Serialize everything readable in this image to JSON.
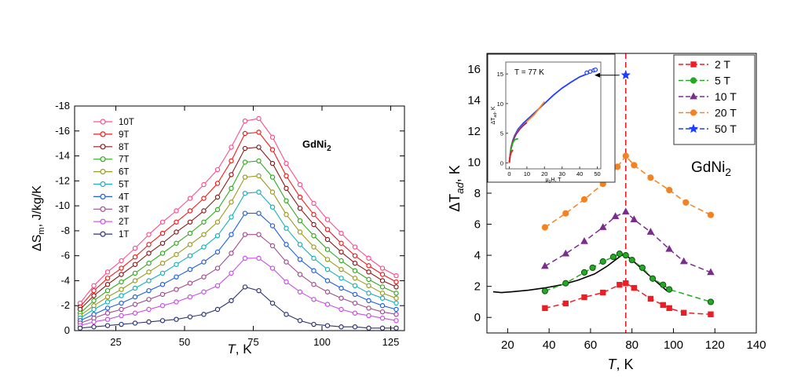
{
  "chart_data": [
    {
      "type": "line",
      "annotation": "GdNi",
      "annotation_sub": "2",
      "xlabel": "T",
      "xlabel_unit": ", K",
      "ylabel": "ΔS",
      "ylabel_sub": "m",
      "ylabel_unit": ", J/kg/K",
      "xlim": [
        10,
        130
      ],
      "ylim": [
        0,
        -18
      ],
      "x_ticks": [
        25,
        50,
        75,
        100,
        125
      ],
      "y_ticks": [
        0,
        -2,
        -4,
        -6,
        -8,
        -10,
        -12,
        -14,
        -16,
        -18
      ],
      "x_tick_labels": [
        "25",
        "50",
        "75",
        "100",
        "125"
      ],
      "y_tick_labels": [
        "0",
        "-2",
        "-4",
        "-6",
        "-8",
        "-10",
        "-12",
        "-14",
        "-16",
        "-18"
      ],
      "legend_position": "top-left",
      "x": [
        12,
        17,
        22,
        27,
        32,
        37,
        42,
        47,
        52,
        57,
        62,
        67,
        72,
        77,
        82,
        87,
        92,
        97,
        102,
        107,
        112,
        117,
        122,
        127
      ],
      "series": [
        {
          "name": "10T",
          "color": "#ff4d8b",
          "values": [
            -2.2,
            -3.6,
            -4.7,
            -5.6,
            -6.6,
            -7.7,
            -8.7,
            -9.6,
            -10.6,
            -11.7,
            -12.9,
            -14.7,
            -16.8,
            -17.0,
            -15.5,
            -13.4,
            -11.7,
            -10.2,
            -8.9,
            -7.8,
            -6.7,
            -5.8,
            -5.0,
            -4.4
          ]
        },
        {
          "name": "9T",
          "color": "#f41a1a",
          "values": [
            -1.9,
            -3.2,
            -4.2,
            -5.0,
            -5.9,
            -6.9,
            -7.8,
            -8.7,
            -9.6,
            -10.6,
            -11.8,
            -13.6,
            -15.8,
            -15.9,
            -14.5,
            -12.4,
            -10.7,
            -9.3,
            -8.1,
            -7.0,
            -6.0,
            -5.2,
            -4.5,
            -3.9
          ]
        },
        {
          "name": "8T",
          "color": "#8b1a1a",
          "values": [
            -1.7,
            -2.8,
            -3.7,
            -4.5,
            -5.3,
            -6.2,
            -7.0,
            -7.9,
            -8.7,
            -9.6,
            -10.7,
            -12.5,
            -14.6,
            -14.7,
            -13.4,
            -11.4,
            -9.8,
            -8.5,
            -7.3,
            -6.3,
            -5.4,
            -4.7,
            -4.0,
            -3.5
          ]
        },
        {
          "name": "7T",
          "color": "#33aa22",
          "values": [
            -1.4,
            -2.4,
            -3.2,
            -3.9,
            -4.6,
            -5.4,
            -6.2,
            -7.0,
            -7.8,
            -8.7,
            -9.7,
            -11.4,
            -13.5,
            -13.6,
            -12.3,
            -10.4,
            -8.8,
            -7.6,
            -6.5,
            -5.6,
            -4.8,
            -4.1,
            -3.5,
            -3.0
          ]
        },
        {
          "name": "6T",
          "color": "#9c9a1e",
          "values": [
            -1.2,
            -2.0,
            -2.7,
            -3.3,
            -4.0,
            -4.7,
            -5.4,
            -6.1,
            -6.9,
            -7.7,
            -8.7,
            -10.3,
            -12.3,
            -12.4,
            -11.1,
            -9.3,
            -7.9,
            -6.7,
            -5.7,
            -4.9,
            -4.2,
            -3.6,
            -3.0,
            -2.6
          ]
        },
        {
          "name": "5T",
          "color": "#18b0b8",
          "values": [
            -1.0,
            -1.7,
            -2.3,
            -2.8,
            -3.4,
            -4.0,
            -4.6,
            -5.3,
            -6.0,
            -6.7,
            -7.6,
            -9.1,
            -11.0,
            -11.1,
            -9.9,
            -8.2,
            -6.9,
            -5.8,
            -4.9,
            -4.2,
            -3.6,
            -3.0,
            -2.6,
            -2.2
          ]
        },
        {
          "name": "4T",
          "color": "#1f5fe0",
          "values": [
            -0.8,
            -1.3,
            -1.8,
            -2.2,
            -2.7,
            -3.2,
            -3.7,
            -4.3,
            -4.9,
            -5.5,
            -6.3,
            -7.7,
            -9.4,
            -9.4,
            -8.4,
            -6.9,
            -5.7,
            -4.8,
            -4.0,
            -3.4,
            -2.9,
            -2.4,
            -2.0,
            -1.7
          ]
        },
        {
          "name": "3T",
          "color": "#a04d90",
          "values": [
            -0.6,
            -1.0,
            -1.4,
            -1.7,
            -2.1,
            -2.5,
            -2.9,
            -3.3,
            -3.8,
            -4.3,
            -5.0,
            -6.2,
            -7.7,
            -7.7,
            -6.8,
            -5.5,
            -4.5,
            -3.7,
            -3.1,
            -2.6,
            -2.2,
            -1.8,
            -1.5,
            -1.3
          ]
        },
        {
          "name": "2T",
          "color": "#c84ee6",
          "values": [
            -0.4,
            -0.7,
            -0.9,
            -1.2,
            -1.4,
            -1.7,
            -2.0,
            -2.3,
            -2.7,
            -3.1,
            -3.6,
            -4.6,
            -5.8,
            -5.8,
            -5.0,
            -3.9,
            -3.1,
            -2.5,
            -2.1,
            -1.7,
            -1.4,
            -1.2,
            -1.0,
            -0.8
          ]
        },
        {
          "name": "1T",
          "color": "#2d3570",
          "values": [
            -0.2,
            -0.3,
            -0.4,
            -0.5,
            -0.6,
            -0.7,
            -0.8,
            -0.9,
            -1.1,
            -1.3,
            -1.7,
            -2.4,
            -3.5,
            -3.2,
            -2.2,
            -1.3,
            -0.8,
            -0.5,
            -0.4,
            -0.3,
            -0.3,
            -0.2,
            -0.2,
            -0.2
          ]
        }
      ]
    },
    {
      "type": "scatter",
      "annotation": "GdNi",
      "annotation_sub": "2",
      "xlabel": "T",
      "xlabel_unit": ", K",
      "ylabel": "ΔT",
      "ylabel_sub": "ad",
      "ylabel_unit": ", K",
      "xlim": [
        10,
        140
      ],
      "ylim": [
        -1,
        17
      ],
      "x_ticks": [
        20,
        40,
        60,
        80,
        100,
        120,
        140
      ],
      "y_ticks": [
        0,
        2,
        4,
        6,
        8,
        10,
        12,
        14,
        16
      ],
      "x_tick_labels": [
        "20",
        "40",
        "60",
        "80",
        "100",
        "120",
        "140"
      ],
      "y_tick_labels": [
        "0",
        "2",
        "4",
        "6",
        "8",
        "10",
        "12",
        "14",
        "16"
      ],
      "legend_position": "top-right",
      "vertical_line_x": 77,
      "series": [
        {
          "name": "2 T",
          "color": "#ee1c24",
          "marker": "square",
          "x": [
            38,
            48,
            57,
            66,
            74,
            77,
            81,
            89,
            95,
            98,
            105,
            118
          ],
          "values": [
            0.6,
            0.9,
            1.3,
            1.6,
            2.1,
            2.2,
            1.9,
            1.2,
            0.8,
            0.6,
            0.3,
            0.2
          ]
        },
        {
          "name": "5 T",
          "color": "#22aa22",
          "marker": "circle",
          "x": [
            38,
            48,
            57,
            61,
            66,
            71,
            74,
            77,
            80,
            85,
            90,
            95,
            98,
            118
          ],
          "values": [
            1.7,
            2.2,
            2.9,
            3.2,
            3.6,
            3.9,
            4.1,
            4.0,
            3.7,
            3.2,
            2.5,
            2.1,
            1.8,
            1.0
          ]
        },
        {
          "name": "10 T",
          "color": "#7b2d8f",
          "marker": "triangle",
          "x": [
            38,
            48,
            57,
            66,
            72,
            77,
            81,
            89,
            98,
            105,
            118
          ],
          "values": [
            3.3,
            4.1,
            4.9,
            5.8,
            6.5,
            6.8,
            6.3,
            5.5,
            4.4,
            3.6,
            2.9
          ]
        },
        {
          "name": "20 T",
          "color": "#f58220",
          "marker": "circle",
          "x": [
            38,
            48,
            57,
            66,
            73,
            77,
            81,
            89,
            98,
            106,
            118
          ],
          "values": [
            5.8,
            6.7,
            7.6,
            8.6,
            9.7,
            10.4,
            9.8,
            9.0,
            8.2,
            7.4,
            6.6
          ]
        },
        {
          "name": "50 T",
          "color": "#1f3dff",
          "marker": "star",
          "x": [
            77
          ],
          "values": [
            15.6
          ]
        }
      ],
      "calc_curve": {
        "color": "#000000",
        "x": [
          13,
          17,
          22,
          30,
          38,
          46,
          54,
          62,
          68,
          72,
          75,
          77,
          80,
          85,
          90,
          97
        ],
        "values": [
          1.65,
          1.6,
          1.65,
          1.75,
          1.9,
          2.1,
          2.4,
          2.8,
          3.3,
          3.7,
          4.0,
          4.0,
          3.7,
          3.1,
          2.5,
          1.7
        ]
      },
      "inset": {
        "annotation": "T = 77 K",
        "xlabel": "μ",
        "xlabel_sub": "0",
        "xlabel_unit": "H, T",
        "ylabel": "ΔT",
        "ylabel_sub": "ad",
        "ylabel_unit": ", K",
        "xlim": [
          -2,
          52
        ],
        "ylim": [
          -1,
          17
        ],
        "x_ticks": [
          0,
          10,
          20,
          30,
          40,
          50
        ],
        "y_ticks": [
          0,
          5,
          10,
          15
        ],
        "x_tick_labels": [
          "0",
          "10",
          "20",
          "30",
          "40",
          "50"
        ],
        "y_tick_labels": [
          "0",
          "5",
          "10",
          "15"
        ],
        "curves": [
          {
            "color": "#1f3dff",
            "x": [
              0,
              0.5,
              1,
              2,
              3,
              5,
              8,
              12,
              16,
              20,
              25,
              30,
              35,
              40,
              45,
              48
            ],
            "values": [
              0,
              1.5,
              2.6,
              3.8,
              4.6,
              5.7,
              6.7,
              7.8,
              8.9,
              10.0,
              11.4,
              12.6,
              13.6,
              14.5,
              15.1,
              15.6
            ]
          },
          {
            "color": "#f58220",
            "x": [
              0,
              1,
              2,
              4,
              6,
              10,
              14,
              20
            ],
            "values": [
              0,
              2.6,
              3.8,
              5.0,
              5.8,
              7.0,
              8.1,
              10.3
            ]
          },
          {
            "color": "#7b2d8f",
            "x": [
              0,
              1,
              2,
              4,
              6,
              8,
              10
            ],
            "values": [
              0,
              2.5,
              3.7,
              4.9,
              5.7,
              6.3,
              6.8
            ]
          },
          {
            "color": "#22aa22",
            "x": [
              0,
              1,
              2,
              3,
              5
            ],
            "values": [
              0,
              2.3,
              3.4,
              3.9,
              4.1
            ]
          },
          {
            "color": "#ee1c24",
            "x": [
              0,
              0.5,
              1,
              2
            ],
            "values": [
              0,
              1.2,
              1.7,
              2.2
            ]
          }
        ],
        "markers": {
          "color": "#1f3dff",
          "x": [
            44,
            46,
            48,
            49
          ],
          "values": [
            15.2,
            15.4,
            15.6,
            15.7
          ]
        }
      }
    }
  ]
}
